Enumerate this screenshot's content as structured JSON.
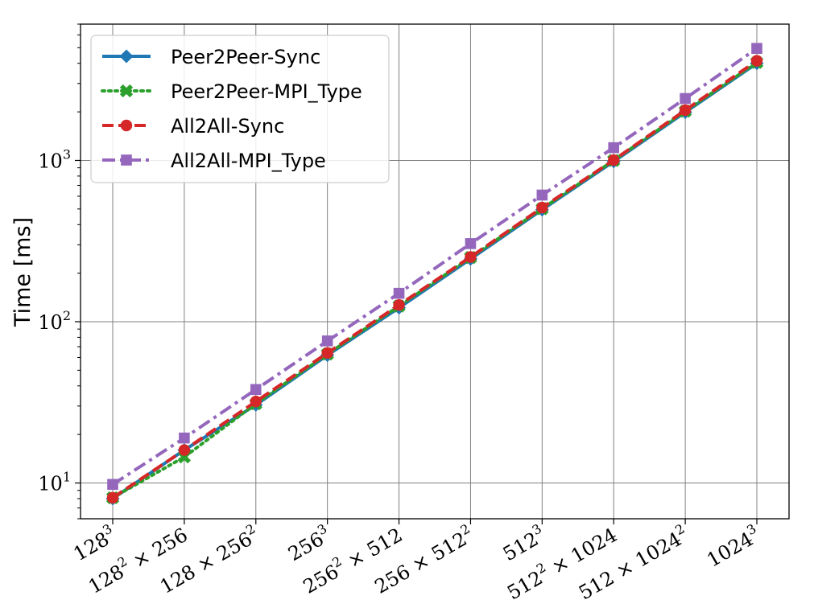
{
  "chart_data": {
    "type": "line",
    "xlabel": "",
    "ylabel": "Time [ms]",
    "yscale": "log",
    "ylim": [
      6,
      7000
    ],
    "grid": true,
    "legend_position": "top-left",
    "categories": [
      {
        "base": "128",
        "sup": "3",
        "rest": "",
        "rest_sup": ""
      },
      {
        "base": "128",
        "sup": "2",
        "rest": " × 256",
        "rest_sup": ""
      },
      {
        "base": "128 × 256",
        "sup": "2",
        "rest": "",
        "rest_sup": ""
      },
      {
        "base": "256",
        "sup": "3",
        "rest": "",
        "rest_sup": ""
      },
      {
        "base": "256",
        "sup": "2",
        "rest": " × 512",
        "rest_sup": ""
      },
      {
        "base": "256 × 512",
        "sup": "2",
        "rest": "",
        "rest_sup": ""
      },
      {
        "base": "512",
        "sup": "3",
        "rest": "",
        "rest_sup": ""
      },
      {
        "base": "512",
        "sup": "2",
        "rest": " × 1024",
        "rest_sup": ""
      },
      {
        "base": "512 × 1024",
        "sup": "2",
        "rest": "",
        "rest_sup": ""
      },
      {
        "base": "1024",
        "sup": "3",
        "rest": "",
        "rest_sup": ""
      }
    ],
    "yticks": [
      {
        "value": 10,
        "base": "10",
        "sup": "1"
      },
      {
        "value": 100,
        "base": "10",
        "sup": "2"
      },
      {
        "value": 1000,
        "base": "10",
        "sup": "3"
      }
    ],
    "series": [
      {
        "name": "Peer2Peer-Sync",
        "color": "#1f77b4",
        "marker": "diamond",
        "dash": "solid",
        "values": [
          8.0,
          16.0,
          30.5,
          62.0,
          122.0,
          245.0,
          495.0,
          985.0,
          1990.0,
          4000.0
        ]
      },
      {
        "name": "Peer2Peer-MPI_Type",
        "color": "#2ca02c",
        "marker": "x",
        "dash": "dotted",
        "values": [
          8.1,
          14.5,
          31.0,
          63.0,
          125.0,
          250.0,
          502.0,
          1000.0,
          2020.0,
          4050.0
        ]
      },
      {
        "name": "All2All-Sync",
        "color": "#d62728",
        "marker": "circle",
        "dash": "dashed",
        "values": [
          8.1,
          16.0,
          32.0,
          64.0,
          127.0,
          252.0,
          510.0,
          1005.0,
          2050.0,
          4150.0
        ]
      },
      {
        "name": "All2All-MPI_Type",
        "color": "#9467bd",
        "marker": "square",
        "dash": "dashdot",
        "values": [
          9.8,
          19.0,
          38.0,
          76.0,
          150.0,
          305.0,
          610.0,
          1200.0,
          2420.0,
          4950.0
        ]
      }
    ]
  }
}
